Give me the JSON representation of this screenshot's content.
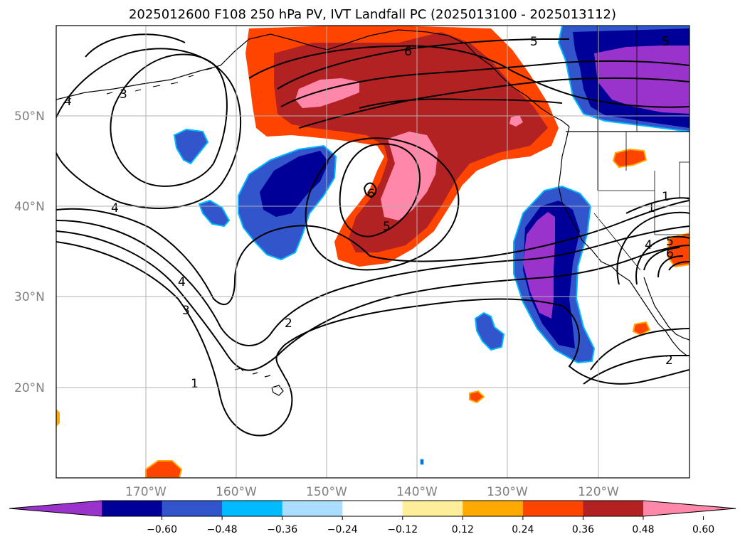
{
  "title": "2025012600 F108 250 hPa PV, IVT Landfall PC (2025013100 - 2025013112)",
  "map": {
    "lat_ticks": [
      "50°N",
      "40°N",
      "30°N",
      "20°N"
    ],
    "lon_ticks": [
      "170°W",
      "160°W",
      "150°W",
      "140°W",
      "130°W",
      "120°W"
    ],
    "contour_labels": [
      "6",
      "5",
      "5",
      "6",
      "5",
      "4",
      "4",
      "3",
      "4",
      "3",
      "2",
      "1",
      "1",
      "2",
      "1",
      "5",
      "6",
      "4"
    ]
  },
  "colorbar": {
    "colors": [
      "#9933cc",
      "#000099",
      "#3355cc",
      "#00bbff",
      "#aaddff",
      "#ffffff",
      "#ffee99",
      "#ffaa00",
      "#ff4400",
      "#b22222",
      "#ff88aa"
    ],
    "tick_labels": [
      "−0.60",
      "−0.48",
      "−0.36",
      "−0.24",
      "−0.12",
      "0.12",
      "0.24",
      "0.36",
      "0.48",
      "0.60"
    ]
  }
}
